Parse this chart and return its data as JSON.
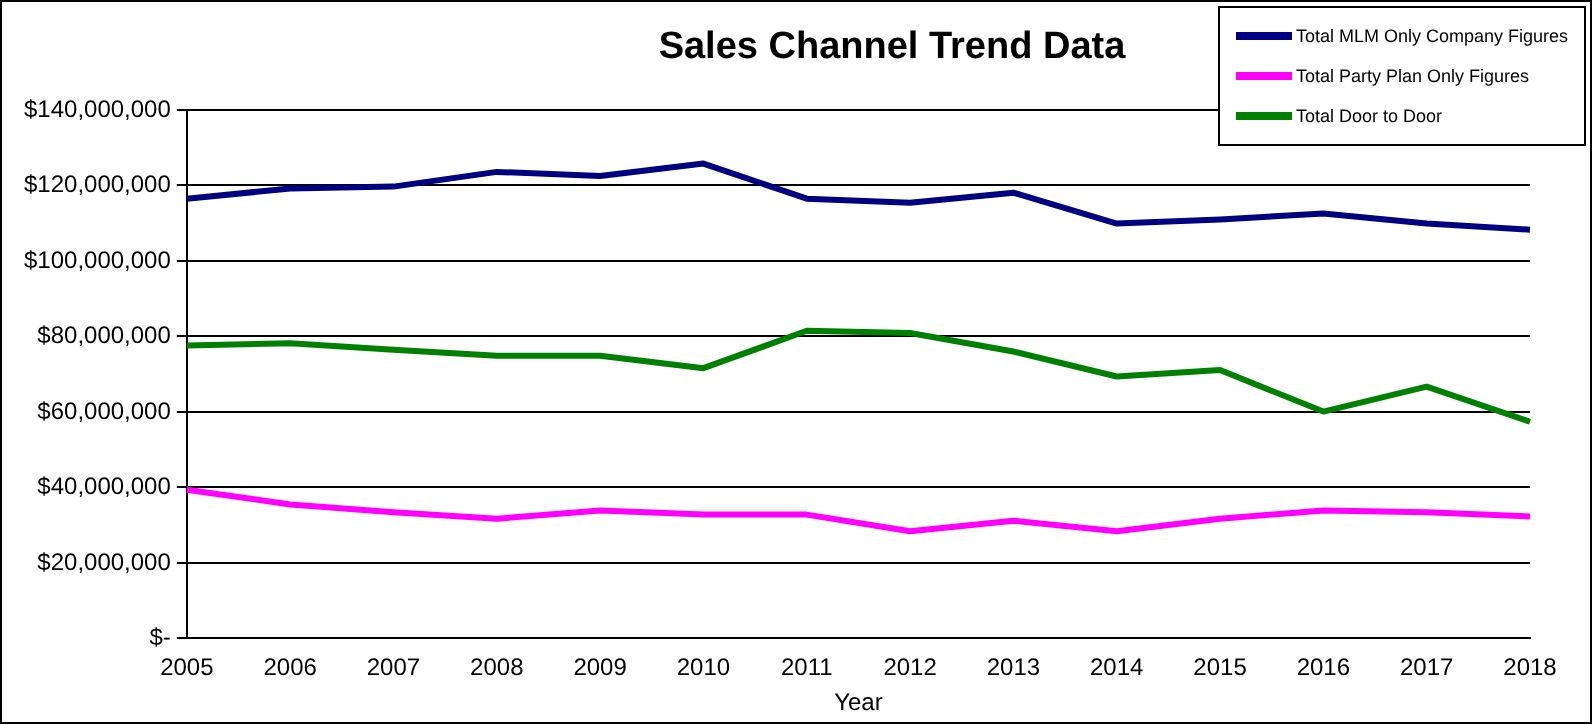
{
  "chart_data": {
    "type": "line",
    "title": "Sales Channel Trend Data",
    "xlabel": "Year",
    "categories": [
      "2005",
      "2006",
      "2007",
      "2008",
      "2009",
      "2010",
      "2011",
      "2012",
      "2013",
      "2014",
      "2015",
      "2016",
      "2017",
      "2018"
    ],
    "series": [
      {
        "name": "Total MLM Only Company Figures",
        "color": "#000080",
        "values": [
          116500000,
          119200000,
          119700000,
          123600000,
          122500000,
          125800000,
          116500000,
          115400000,
          118100000,
          109900000,
          111000000,
          112600000,
          109900000,
          108300000
        ]
      },
      {
        "name": "Total Party Plan Only Figures",
        "color": "#ff00ff",
        "values": [
          39400000,
          35500000,
          33400000,
          31700000,
          33900000,
          32800000,
          32800000,
          28400000,
          31200000,
          28400000,
          31700000,
          33900000,
          33400000,
          32300000
        ]
      },
      {
        "name": "Total Door to Door",
        "color": "#008000",
        "values": [
          77600000,
          78200000,
          76500000,
          74900000,
          74900000,
          71600000,
          81500000,
          80900000,
          76000000,
          69400000,
          71100000,
          60100000,
          66700000,
          57400000
        ]
      }
    ],
    "ylim": [
      0,
      140000000
    ],
    "yticks": [
      {
        "value": 0,
        "label": "$-"
      },
      {
        "value": 20000000,
        "label": "$20,000,000"
      },
      {
        "value": 40000000,
        "label": "$40,000,000"
      },
      {
        "value": 60000000,
        "label": "$60,000,000"
      },
      {
        "value": 80000000,
        "label": "$80,000,000"
      },
      {
        "value": 100000000,
        "label": "$100,000,000"
      },
      {
        "value": 120000000,
        "label": "$120,000,000"
      },
      {
        "value": 140000000,
        "label": "$140,000,000"
      }
    ],
    "grid": "y",
    "legend": "top right",
    "marker": "none",
    "line_style": "solid"
  }
}
